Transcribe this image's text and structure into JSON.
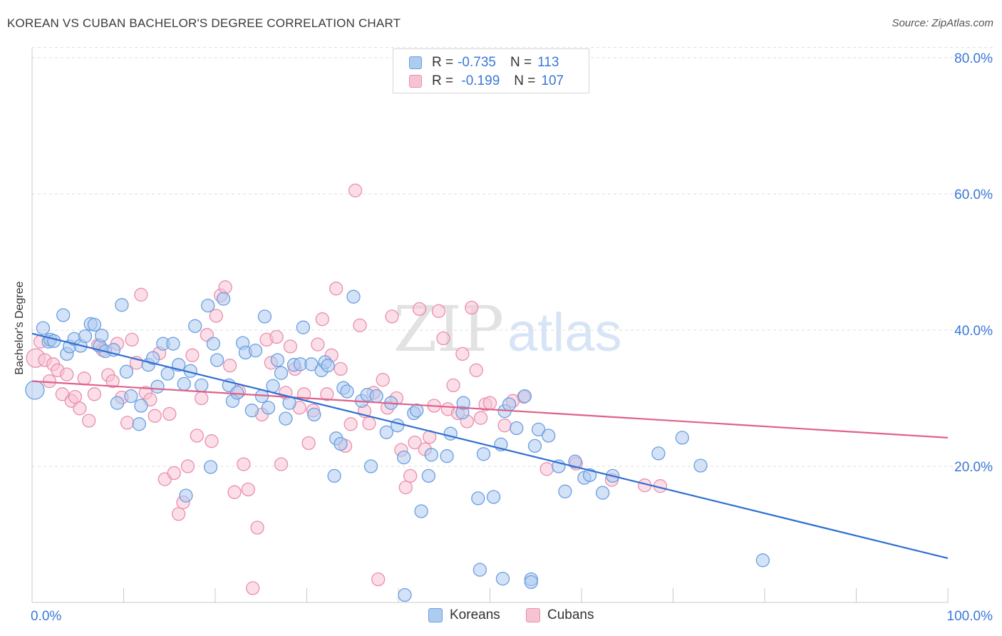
{
  "title": "KOREAN VS CUBAN BACHELOR'S DEGREE CORRELATION CHART",
  "source": "Source: ZipAtlas.com",
  "watermark": {
    "zip": "ZIP",
    "atlas": "atlas"
  },
  "legend": {
    "rows": [
      {
        "r_label": "R =",
        "r_value": "-0.735",
        "n_label": "N =",
        "n_value": "113"
      },
      {
        "r_label": "R =",
        "r_value": " -0.199",
        "n_label": "N =",
        "n_value": "107"
      }
    ]
  },
  "colors": {
    "korean_fill": "#aecbf0",
    "korean_stroke": "#6a9fe0",
    "korean_line": "#2f6fd3",
    "cuban_fill": "#f7c3d3",
    "cuban_stroke": "#e98fac",
    "cuban_line": "#e0608a",
    "tick_label": "#3a78d8",
    "grid": "#dddddd"
  },
  "chart_data": {
    "type": "scatter",
    "title": "KOREAN VS CUBAN BACHELOR'S DEGREE CORRELATION CHART",
    "xlabel": "",
    "ylabel": "Bachelor's Degree",
    "xlim": [
      0,
      100
    ],
    "ylim": [
      0,
      80
    ],
    "x_tick_labels": [
      "0.0%",
      "100.0%"
    ],
    "y_ticks": [
      20,
      40,
      60,
      80
    ],
    "y_tick_labels": [
      "20.0%",
      "40.0%",
      "60.0%",
      "80.0%"
    ],
    "grid": true,
    "legend_position": "top-center",
    "series": [
      {
        "name": "Koreans",
        "r": -0.735,
        "n": 113,
        "trend": {
          "x": [
            0,
            100
          ],
          "y": [
            39.5,
            6.5
          ]
        },
        "points": [
          [
            0.3,
            31.2
          ],
          [
            1.2,
            40.3
          ],
          [
            1.8,
            38.3
          ],
          [
            2.0,
            38.6
          ],
          [
            2.4,
            38.4
          ],
          [
            3.4,
            42.2
          ],
          [
            3.8,
            36.5
          ],
          [
            4.1,
            37.6
          ],
          [
            4.6,
            38.7
          ],
          [
            5.3,
            37.7
          ],
          [
            5.8,
            39.1
          ],
          [
            6.4,
            40.9
          ],
          [
            6.8,
            40.8
          ],
          [
            7.4,
            37.7
          ],
          [
            7.6,
            39.2
          ],
          [
            8.0,
            36.9
          ],
          [
            8.9,
            37.1
          ],
          [
            9.3,
            29.3
          ],
          [
            9.8,
            43.7
          ],
          [
            10.3,
            33.9
          ],
          [
            10.8,
            30.3
          ],
          [
            11.7,
            26.2
          ],
          [
            11.9,
            28.9
          ],
          [
            12.7,
            34.9
          ],
          [
            13.2,
            35.9
          ],
          [
            13.7,
            31.7
          ],
          [
            14.3,
            38.0
          ],
          [
            14.8,
            33.6
          ],
          [
            15.4,
            38.0
          ],
          [
            16.0,
            34.9
          ],
          [
            16.6,
            32.1
          ],
          [
            16.8,
            15.7
          ],
          [
            17.3,
            34.0
          ],
          [
            17.8,
            40.6
          ],
          [
            18.5,
            31.9
          ],
          [
            19.2,
            43.6
          ],
          [
            19.5,
            19.9
          ],
          [
            19.8,
            38.0
          ],
          [
            20.2,
            35.6
          ],
          [
            20.9,
            44.6
          ],
          [
            21.5,
            31.9
          ],
          [
            21.9,
            29.6
          ],
          [
            22.4,
            30.8
          ],
          [
            23.0,
            38.1
          ],
          [
            23.3,
            36.7
          ],
          [
            24.0,
            28.2
          ],
          [
            24.4,
            37.0
          ],
          [
            25.1,
            30.3
          ],
          [
            25.4,
            42.0
          ],
          [
            25.8,
            28.6
          ],
          [
            26.3,
            31.8
          ],
          [
            26.8,
            35.6
          ],
          [
            27.2,
            33.7
          ],
          [
            27.7,
            27.0
          ],
          [
            28.1,
            29.3
          ],
          [
            28.6,
            34.9
          ],
          [
            29.3,
            35.0
          ],
          [
            29.6,
            40.4
          ],
          [
            30.5,
            35.0
          ],
          [
            30.8,
            27.6
          ],
          [
            31.6,
            34.1
          ],
          [
            32.0,
            35.3
          ],
          [
            32.3,
            34.8
          ],
          [
            33.0,
            18.6
          ],
          [
            33.2,
            24.1
          ],
          [
            33.7,
            23.3
          ],
          [
            34.0,
            31.5
          ],
          [
            34.4,
            31.0
          ],
          [
            35.1,
            44.9
          ],
          [
            36.0,
            29.6
          ],
          [
            36.6,
            30.5
          ],
          [
            37.0,
            20.0
          ],
          [
            37.6,
            30.3
          ],
          [
            38.7,
            25.0
          ],
          [
            39.2,
            29.3
          ],
          [
            39.9,
            26.0
          ],
          [
            40.6,
            21.3
          ],
          [
            41.7,
            27.8
          ],
          [
            42.0,
            28.2
          ],
          [
            43.3,
            18.6
          ],
          [
            43.6,
            21.7
          ],
          [
            45.3,
            21.5
          ],
          [
            45.7,
            24.8
          ],
          [
            47.0,
            27.9
          ],
          [
            47.1,
            29.3
          ],
          [
            48.7,
            15.3
          ],
          [
            49.3,
            21.8
          ],
          [
            50.4,
            15.5
          ],
          [
            51.2,
            23.2
          ],
          [
            51.6,
            28.1
          ],
          [
            52.1,
            29.1
          ],
          [
            52.9,
            25.6
          ],
          [
            53.8,
            30.3
          ],
          [
            54.9,
            23.0
          ],
          [
            55.3,
            25.4
          ],
          [
            56.4,
            24.5
          ],
          [
            57.5,
            20.0
          ],
          [
            58.2,
            16.3
          ],
          [
            59.3,
            20.7
          ],
          [
            60.3,
            18.3
          ],
          [
            60.9,
            18.7
          ],
          [
            62.3,
            16.1
          ],
          [
            63.4,
            18.6
          ],
          [
            68.4,
            21.9
          ],
          [
            71.0,
            24.2
          ],
          [
            73.0,
            20.1
          ],
          [
            79.8,
            6.2
          ],
          [
            40.7,
            1.1
          ],
          [
            42.5,
            13.4
          ],
          [
            48.9,
            4.8
          ],
          [
            51.4,
            3.5
          ],
          [
            54.5,
            3.4
          ],
          [
            54.5,
            3.0
          ]
        ]
      },
      {
        "name": "Cubans",
        "r": -0.199,
        "n": 107,
        "trend": {
          "x": [
            0,
            100
          ],
          "y": [
            32.5,
            24.2
          ]
        },
        "points": [
          [
            0.4,
            35.9
          ],
          [
            0.9,
            38.3
          ],
          [
            1.4,
            35.6
          ],
          [
            1.9,
            32.5
          ],
          [
            2.3,
            35.0
          ],
          [
            2.8,
            34.1
          ],
          [
            3.3,
            30.6
          ],
          [
            3.8,
            33.5
          ],
          [
            4.3,
            29.6
          ],
          [
            4.7,
            30.2
          ],
          [
            5.2,
            28.5
          ],
          [
            5.7,
            32.9
          ],
          [
            6.2,
            26.7
          ],
          [
            6.8,
            30.6
          ],
          [
            7.2,
            37.8
          ],
          [
            7.7,
            37.1
          ],
          [
            8.3,
            33.4
          ],
          [
            8.8,
            32.5
          ],
          [
            9.3,
            38.0
          ],
          [
            9.8,
            30.1
          ],
          [
            10.4,
            26.4
          ],
          [
            10.9,
            38.6
          ],
          [
            11.4,
            35.2
          ],
          [
            11.9,
            45.2
          ],
          [
            12.4,
            30.8
          ],
          [
            12.9,
            29.8
          ],
          [
            13.4,
            27.4
          ],
          [
            13.9,
            36.6
          ],
          [
            14.5,
            18.1
          ],
          [
            15.0,
            27.7
          ],
          [
            15.5,
            19.0
          ],
          [
            16.0,
            13.0
          ],
          [
            16.5,
            14.7
          ],
          [
            17.0,
            20.0
          ],
          [
            17.5,
            36.3
          ],
          [
            18.0,
            24.5
          ],
          [
            18.5,
            30.0
          ],
          [
            19.1,
            39.3
          ],
          [
            19.6,
            23.7
          ],
          [
            20.1,
            42.1
          ],
          [
            20.6,
            45.1
          ],
          [
            21.1,
            46.3
          ],
          [
            21.6,
            34.8
          ],
          [
            22.1,
            16.2
          ],
          [
            22.6,
            31.0
          ],
          [
            23.1,
            20.3
          ],
          [
            23.6,
            16.6
          ],
          [
            24.1,
            2.1
          ],
          [
            24.6,
            11.0
          ],
          [
            25.1,
            27.6
          ],
          [
            25.6,
            38.6
          ],
          [
            26.1,
            35.2
          ],
          [
            26.7,
            39.0
          ],
          [
            27.2,
            20.3
          ],
          [
            27.7,
            30.8
          ],
          [
            28.2,
            37.6
          ],
          [
            28.7,
            34.3
          ],
          [
            29.2,
            28.6
          ],
          [
            29.7,
            30.6
          ],
          [
            30.2,
            23.4
          ],
          [
            30.7,
            28.2
          ],
          [
            31.2,
            37.9
          ],
          [
            31.7,
            41.6
          ],
          [
            32.2,
            30.6
          ],
          [
            32.7,
            36.3
          ],
          [
            33.2,
            46.1
          ],
          [
            33.7,
            34.3
          ],
          [
            34.2,
            23.0
          ],
          [
            34.8,
            26.2
          ],
          [
            35.3,
            60.5
          ],
          [
            35.8,
            40.7
          ],
          [
            36.3,
            28.1
          ],
          [
            36.8,
            26.3
          ],
          [
            37.3,
            30.8
          ],
          [
            37.8,
            3.4
          ],
          [
            38.3,
            32.7
          ],
          [
            38.8,
            28.6
          ],
          [
            39.3,
            42.0
          ],
          [
            39.8,
            30.0
          ],
          [
            40.3,
            22.4
          ],
          [
            40.8,
            16.9
          ],
          [
            41.3,
            18.6
          ],
          [
            41.8,
            23.5
          ],
          [
            42.3,
            43.1
          ],
          [
            42.9,
            22.5
          ],
          [
            43.4,
            24.3
          ],
          [
            43.9,
            28.9
          ],
          [
            44.4,
            42.8
          ],
          [
            44.9,
            38.8
          ],
          [
            45.4,
            28.4
          ],
          [
            46.0,
            31.9
          ],
          [
            46.5,
            27.8
          ],
          [
            47.0,
            36.5
          ],
          [
            47.5,
            26.6
          ],
          [
            48.0,
            43.3
          ],
          [
            48.5,
            34.1
          ],
          [
            49.0,
            27.1
          ],
          [
            49.5,
            29.1
          ],
          [
            50.0,
            29.3
          ],
          [
            51.6,
            26.0
          ],
          [
            52.5,
            29.6
          ],
          [
            53.7,
            30.2
          ],
          [
            56.2,
            19.6
          ],
          [
            59.4,
            20.4
          ],
          [
            63.3,
            18.0
          ],
          [
            66.9,
            17.2
          ],
          [
            68.6,
            17.1
          ]
        ]
      }
    ]
  },
  "bottom_legend": [
    {
      "label": "Koreans"
    },
    {
      "label": "Cubans"
    }
  ]
}
